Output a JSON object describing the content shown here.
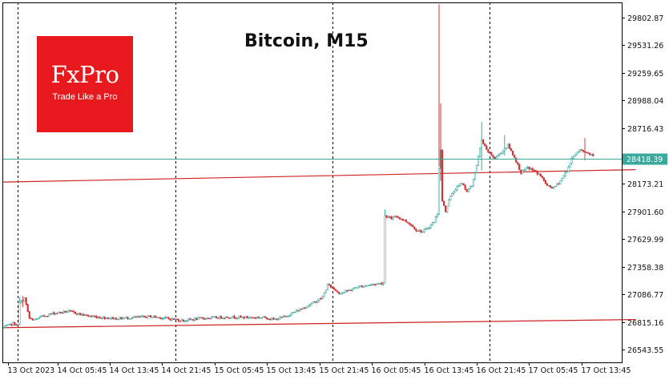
{
  "logo": {
    "name": "FxPro",
    "tagline": "Trade Like a Pro",
    "color": "#e8191c"
  },
  "chart_data": {
    "type": "candlestick",
    "title": "Bitcoin, M15",
    "xlabel": "",
    "ylabel": "",
    "ylim": [
      26420,
      29950
    ],
    "y_ticks": [
      "29802.87",
      "29531.26",
      "29259.65",
      "28988.04",
      "28716.43",
      "28173.21",
      "27901.60",
      "27629.99",
      "27358.38",
      "27086.77",
      "26815.16",
      "26543.55"
    ],
    "x_ticks": [
      "13 Oct 2023",
      "14 Oct 05:45",
      "14 Oct 13:45",
      "14 Oct 21:45",
      "15 Oct 05:45",
      "15 Oct 13:45",
      "15 Oct 21:45",
      "16 Oct 05:45",
      "16 Oct 13:45",
      "16 Oct 21:45",
      "17 Oct 05:45",
      "17 Oct 13:45"
    ],
    "x_tick_bars": [
      3,
      33,
      65,
      97,
      129,
      161,
      193,
      225,
      257,
      289,
      321,
      353
    ],
    "session_separator_bars": [
      9,
      105,
      201,
      297
    ],
    "bars_total": 378,
    "current_price": "28418.39",
    "trendlines": [
      {
        "name": "upper",
        "from": [
          0,
          28188
        ],
        "to": [
          386,
          28310
        ],
        "color": "#cc2222"
      },
      {
        "name": "lower",
        "from": [
          0,
          26760
        ],
        "to": [
          386,
          26840
        ],
        "color": "#cc2222"
      }
    ],
    "price_line": {
      "value": 28418.39,
      "color": "#3aa89c"
    },
    "colors": {
      "up": "#2aa198",
      "down": "#d23030",
      "grid": "#000000",
      "axis": "#000000"
    },
    "price_path": [
      [
        0,
        26760
      ],
      [
        3,
        26780
      ],
      [
        6,
        26800
      ],
      [
        9,
        26790
      ],
      [
        10,
        27000
      ],
      [
        13,
        27050
      ],
      [
        16,
        26850
      ],
      [
        18,
        26830
      ],
      [
        22,
        26860
      ],
      [
        30,
        26900
      ],
      [
        40,
        26920
      ],
      [
        50,
        26880
      ],
      [
        60,
        26860
      ],
      [
        70,
        26850
      ],
      [
        80,
        26860
      ],
      [
        90,
        26870
      ],
      [
        100,
        26850
      ],
      [
        105,
        26840
      ],
      [
        110,
        26830
      ],
      [
        120,
        26850
      ],
      [
        130,
        26860
      ],
      [
        140,
        26865
      ],
      [
        150,
        26860
      ],
      [
        160,
        26860
      ],
      [
        165,
        26840
      ],
      [
        168,
        26850
      ],
      [
        172,
        26870
      ],
      [
        176,
        26900
      ],
      [
        180,
        26930
      ],
      [
        185,
        26970
      ],
      [
        190,
        27010
      ],
      [
        195,
        27060
      ],
      [
        198,
        27180
      ],
      [
        201,
        27150
      ],
      [
        205,
        27100
      ],
      [
        208,
        27110
      ],
      [
        212,
        27130
      ],
      [
        216,
        27160
      ],
      [
        220,
        27170
      ],
      [
        224,
        27180
      ],
      [
        228,
        27190
      ],
      [
        232,
        27200
      ],
      [
        233,
        27860
      ],
      [
        237,
        27830
      ],
      [
        240,
        27850
      ],
      [
        244,
        27820
      ],
      [
        248,
        27780
      ],
      [
        252,
        27720
      ],
      [
        256,
        27700
      ],
      [
        260,
        27750
      ],
      [
        263,
        27800
      ],
      [
        265,
        27880
      ],
      [
        266,
        28330
      ],
      [
        267,
        28500
      ],
      [
        268,
        28000
      ],
      [
        270,
        27900
      ],
      [
        272,
        28020
      ],
      [
        276,
        28120
      ],
      [
        280,
        28180
      ],
      [
        283,
        28100
      ],
      [
        286,
        28150
      ],
      [
        289,
        28350
      ],
      [
        292,
        28600
      ],
      [
        295,
        28500
      ],
      [
        300,
        28420
      ],
      [
        304,
        28480
      ],
      [
        308,
        28550
      ],
      [
        312,
        28430
      ],
      [
        316,
        28280
      ],
      [
        320,
        28330
      ],
      [
        324,
        28300
      ],
      [
        328,
        28250
      ],
      [
        332,
        28150
      ],
      [
        336,
        28130
      ],
      [
        340,
        28200
      ],
      [
        344,
        28300
      ],
      [
        348,
        28450
      ],
      [
        352,
        28500
      ],
      [
        356,
        28480
      ],
      [
        360,
        28450
      ]
    ],
    "spikes": [
      [
        266,
        28340,
        29930
      ],
      [
        267,
        28200,
        28960
      ]
    ],
    "bar_ranges": [
      [
        10,
        26880,
        27060
      ],
      [
        12,
        26960,
        27070
      ],
      [
        233,
        27700,
        27920
      ],
      [
        292,
        28300,
        28780
      ],
      [
        306,
        28450,
        28650
      ],
      [
        355,
        28400,
        28620
      ]
    ]
  }
}
